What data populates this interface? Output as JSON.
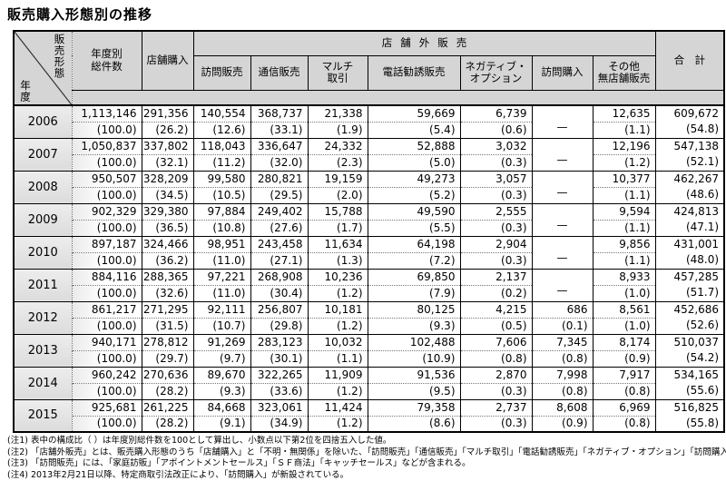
{
  "title": "販売購入形態別の推移",
  "table": {
    "corner": {
      "right": "販売形態",
      "left": "年度"
    },
    "headers": {
      "total": "年度別\n総件数",
      "store": "店舗購入",
      "group": "店舗外販売",
      "cols": [
        "訪問販売",
        "通信販売",
        "マルチ\n取引",
        "電話勧誘販売",
        "ネガティブ・\nオプション",
        "訪問購入",
        "その他\n無店舗販売"
      ],
      "sum": "合　計"
    },
    "rows": [
      {
        "year": "2006",
        "values": [
          "1,113,146",
          "291,356",
          "140,554",
          "368,737",
          "21,338",
          "59,669",
          "6,739",
          "—",
          "12,635",
          "609,672"
        ],
        "pcts": [
          "(100.0)",
          "(26.2)",
          "(12.6)",
          "(33.1)",
          "(1.9)",
          "(5.4)",
          "(0.6)",
          "",
          "(1.1)",
          "(54.8)"
        ]
      },
      {
        "year": "2007",
        "values": [
          "1,050,837",
          "337,802",
          "118,043",
          "336,647",
          "24,332",
          "52,888",
          "3,032",
          "—",
          "12,196",
          "547,138"
        ],
        "pcts": [
          "(100.0)",
          "(32.1)",
          "(11.2)",
          "(32.0)",
          "(2.3)",
          "(5.0)",
          "(0.3)",
          "",
          "(1.2)",
          "(52.1)"
        ]
      },
      {
        "year": "2008",
        "values": [
          "950,507",
          "328,209",
          "99,580",
          "280,821",
          "19,159",
          "49,273",
          "3,057",
          "—",
          "10,377",
          "462,267"
        ],
        "pcts": [
          "(100.0)",
          "(34.5)",
          "(10.5)",
          "(29.5)",
          "(2.0)",
          "(5.2)",
          "(0.3)",
          "",
          "(1.1)",
          "(48.6)"
        ]
      },
      {
        "year": "2009",
        "values": [
          "902,329",
          "329,380",
          "97,884",
          "249,402",
          "15,788",
          "49,590",
          "2,555",
          "—",
          "9,594",
          "424,813"
        ],
        "pcts": [
          "(100.0)",
          "(36.5)",
          "(10.8)",
          "(27.6)",
          "(1.7)",
          "(5.5)",
          "(0.3)",
          "",
          "(1.1)",
          "(47.1)"
        ]
      },
      {
        "year": "2010",
        "values": [
          "897,187",
          "324,466",
          "98,951",
          "243,458",
          "11,634",
          "64,198",
          "2,904",
          "—",
          "9,856",
          "431,001"
        ],
        "pcts": [
          "(100.0)",
          "(36.2)",
          "(11.0)",
          "(27.1)",
          "(1.3)",
          "(7.2)",
          "(0.3)",
          "",
          "(1.1)",
          "(48.0)"
        ]
      },
      {
        "year": "2011",
        "values": [
          "884,116",
          "288,365",
          "97,221",
          "268,908",
          "10,236",
          "69,850",
          "2,137",
          "—",
          "8,933",
          "457,285"
        ],
        "pcts": [
          "(100.0)",
          "(32.6)",
          "(11.0)",
          "(30.4)",
          "(1.2)",
          "(7.9)",
          "(0.2)",
          "",
          "(1.0)",
          "(51.7)"
        ]
      },
      {
        "year": "2012",
        "values": [
          "861,217",
          "271,295",
          "92,111",
          "256,807",
          "10,181",
          "80,125",
          "4,215",
          "686",
          "8,561",
          "452,686"
        ],
        "pcts": [
          "(100.0)",
          "(31.5)",
          "(10.7)",
          "(29.8)",
          "(1.2)",
          "(9.3)",
          "(0.5)",
          "(0.1)",
          "(1.0)",
          "(52.6)"
        ]
      },
      {
        "year": "2013",
        "values": [
          "940,171",
          "278,812",
          "91,269",
          "283,123",
          "10,032",
          "102,488",
          "7,606",
          "7,345",
          "8,174",
          "510,037"
        ],
        "pcts": [
          "(100.0)",
          "(29.7)",
          "(9.7)",
          "(30.1)",
          "(1.1)",
          "(10.9)",
          "(0.8)",
          "(0.8)",
          "(0.9)",
          "(54.2)"
        ]
      },
      {
        "year": "2014",
        "values": [
          "960,242",
          "270,636",
          "89,670",
          "322,265",
          "11,909",
          "91,536",
          "2,870",
          "7,998",
          "7,917",
          "534,165"
        ],
        "pcts": [
          "(100.0)",
          "(28.2)",
          "(9.3)",
          "(33.6)",
          "(1.2)",
          "(9.5)",
          "(0.3)",
          "(0.8)",
          "(0.8)",
          "(55.6)"
        ]
      },
      {
        "year": "2015",
        "values": [
          "925,681",
          "261,225",
          "84,668",
          "323,061",
          "11,424",
          "79,358",
          "2,737",
          "8,608",
          "6,969",
          "516,825"
        ],
        "pcts": [
          "(100.0)",
          "(28.2)",
          "(9.1)",
          "(34.9)",
          "(1.2)",
          "(8.6)",
          "(0.3)",
          "(0.9)",
          "(0.8)",
          "(55.8)"
        ]
      }
    ]
  },
  "notes": [
    "(注1) 表中の構成比（ ）は年度別総件数を100として算出し、小数点以下第2位を四捨五入した値。",
    "(注2) 「店舗外販売」とは、販売購入形態のうち「店舗購入」と「不明・無関係」を除いた、「訪問販売」「通信販売」「マルチ取引」「電話勧誘販売」「ネガティブ・オプション」「訪問購入」「その他無店舗販売」の形態。",
    "(注3) 「訪問販売」には、「家庭訪販」「アポイントメントセールス」「ＳＦ商法」「キャッチセールス」などが含まれる。",
    "(注4) 2013年2月21日以降、特定商取引法改正により、「訪問購入」が新設されている。"
  ]
}
